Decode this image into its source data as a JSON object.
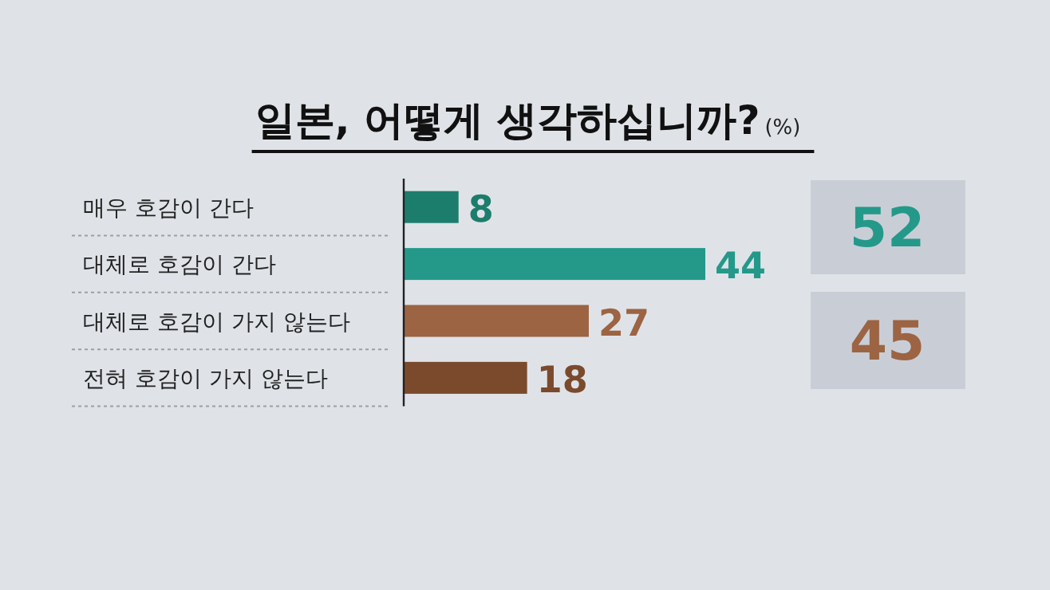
{
  "chart_data": {
    "type": "bar",
    "orientation": "horizontal",
    "title": "일본, 어떻게 생각하십니까?",
    "subtitle": "(%)",
    "categories": [
      "매우 호감이 간다",
      "대체로 호감이 간다",
      "대체로 호감이 가지 않는다",
      "전혀 호감이 가지 않는다"
    ],
    "values": [
      8,
      44,
      27,
      18
    ],
    "colors": [
      "#1c7d6c",
      "#24998a",
      "#9c6443",
      "#7b4a2c"
    ],
    "data_labels": true,
    "annotations": [
      "52",
      "45"
    ]
  }
}
